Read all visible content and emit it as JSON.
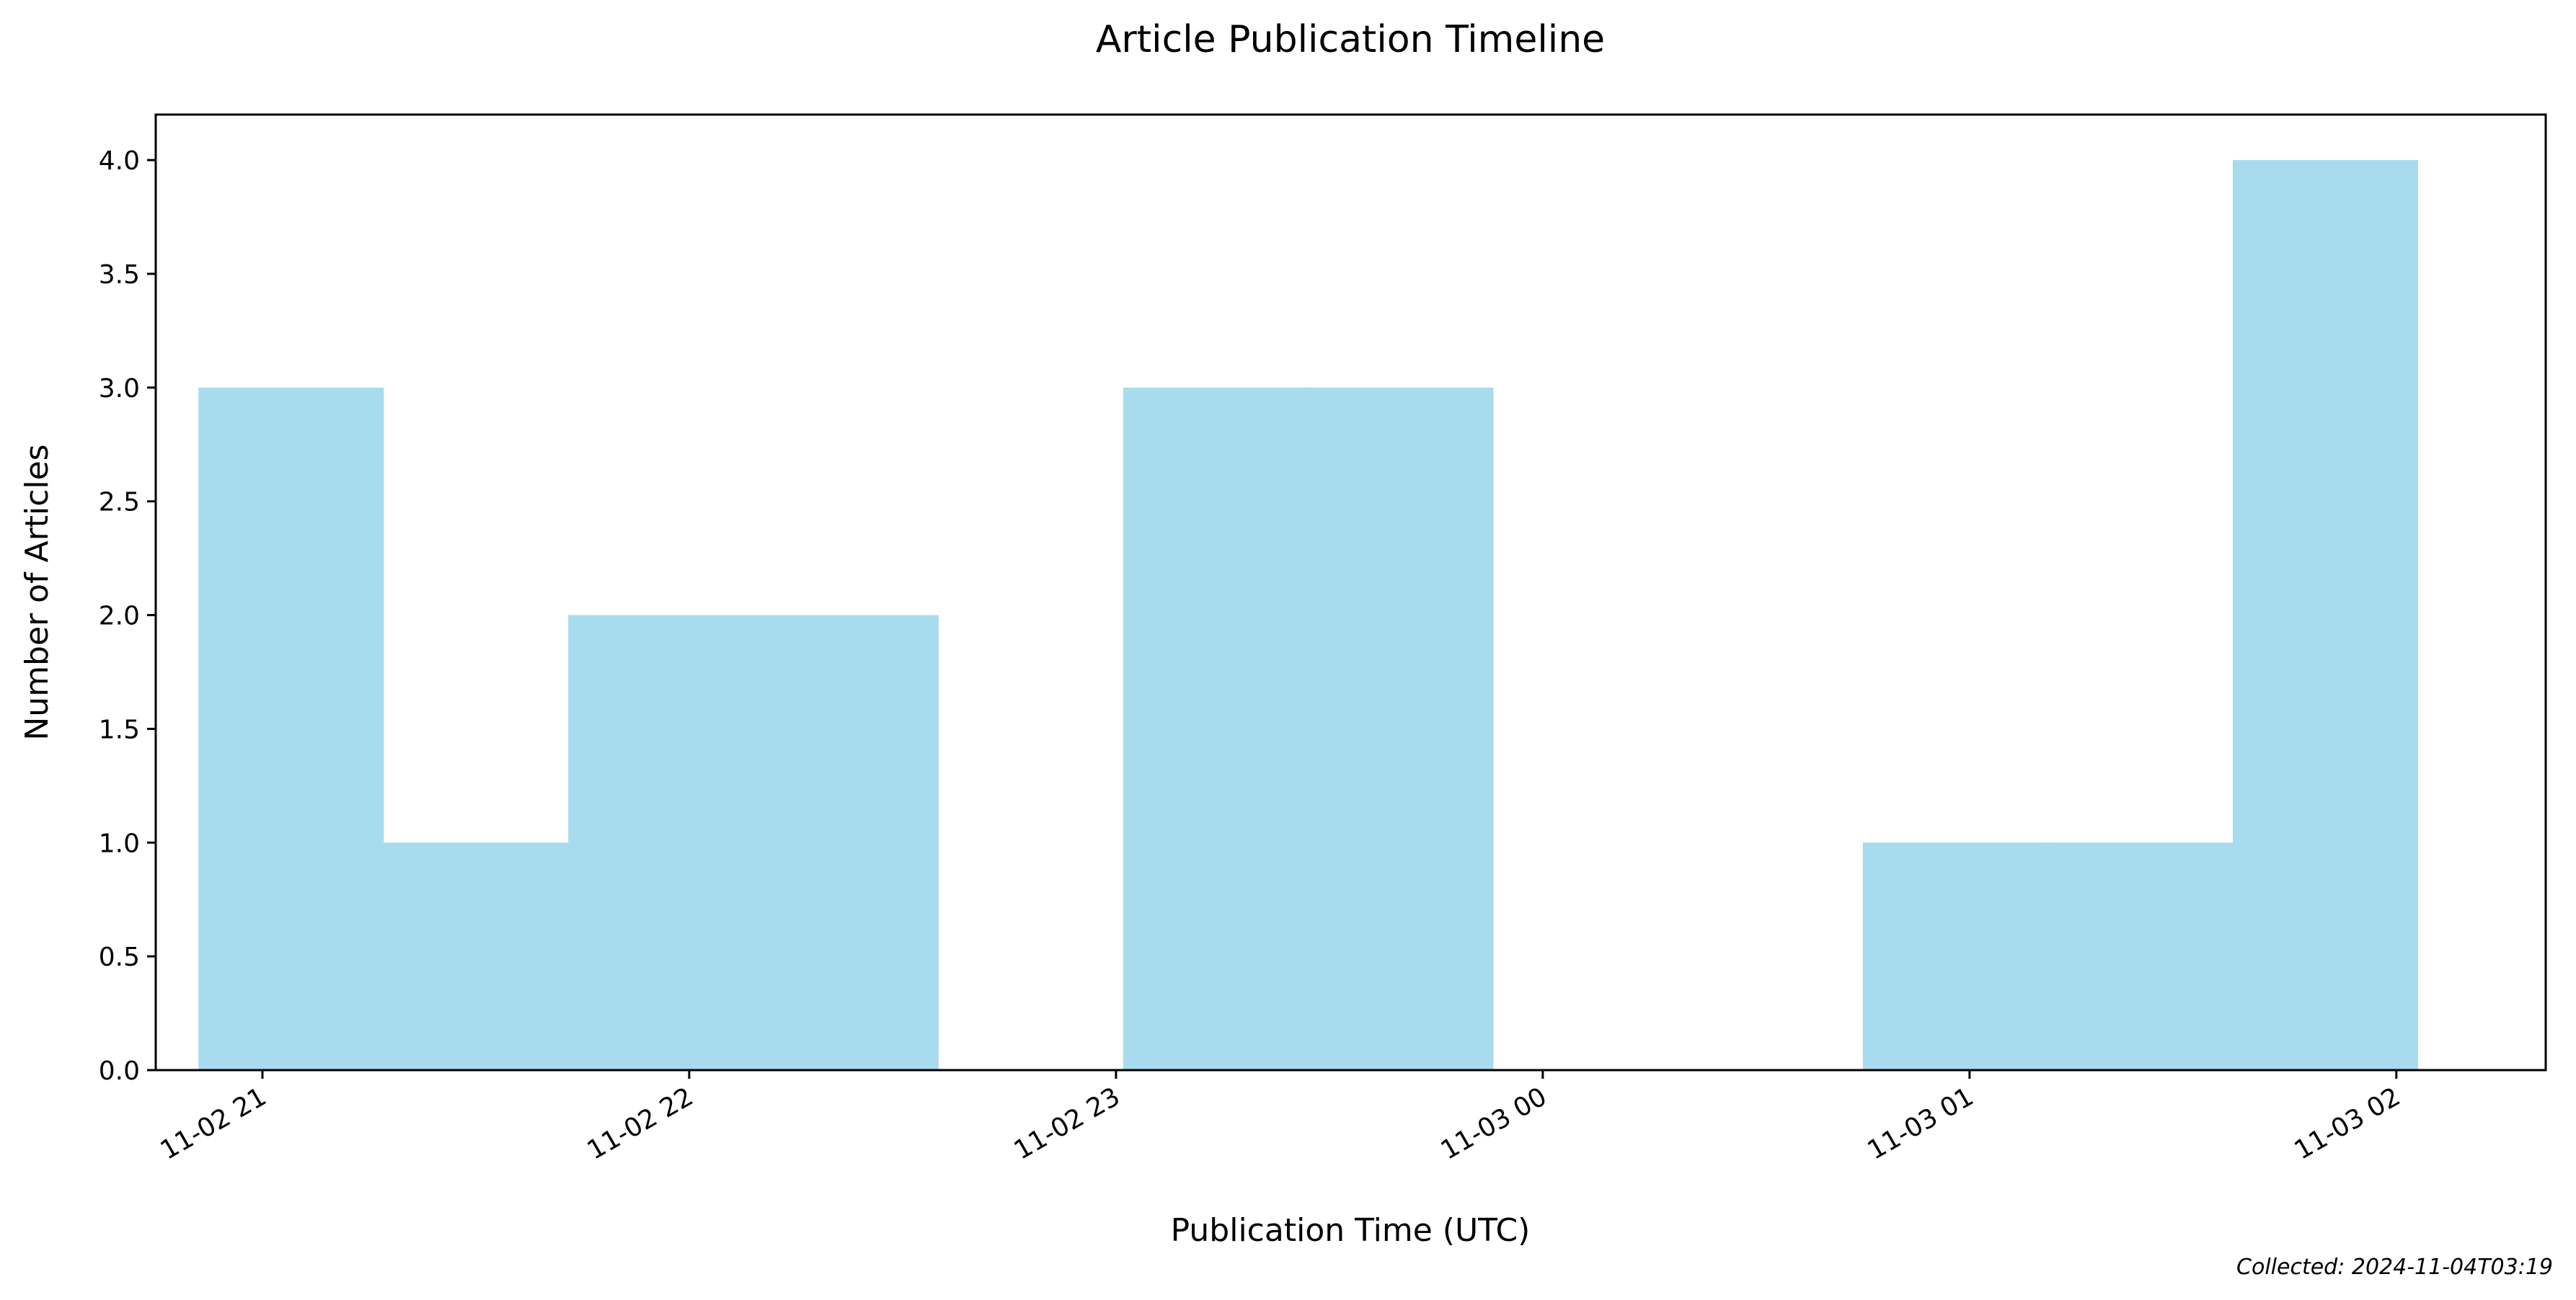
{
  "chart_data": {
    "type": "bar",
    "title": "Article Publication Timeline",
    "xlabel": "Publication Time (UTC)",
    "ylabel": "Number of Articles",
    "note": "Collected: 2024-11-04T03:19",
    "bar_color": "#a8dbee",
    "x_axis": {
      "unit": "time (UTC)",
      "range": [
        "2024-11-02 20:45",
        "2024-11-03 02:21"
      ],
      "ticks": [
        {
          "value": "2024-11-02 21:00",
          "label": "11-02 21"
        },
        {
          "value": "2024-11-02 22:00",
          "label": "11-02 22"
        },
        {
          "value": "2024-11-02 23:00",
          "label": "11-02 23"
        },
        {
          "value": "2024-11-03 00:00",
          "label": "11-03 00"
        },
        {
          "value": "2024-11-03 01:00",
          "label": "11-03 01"
        },
        {
          "value": "2024-11-03 02:00",
          "label": "11-03 02"
        }
      ]
    },
    "ylim": [
      0,
      4.2
    ],
    "y_ticks": [
      "0.0",
      "0.5",
      "1.0",
      "1.5",
      "2.0",
      "2.5",
      "3.0",
      "3.5",
      "4.0"
    ],
    "bins": [
      {
        "start": "2024-11-02 20:51",
        "end": "2024-11-02 21:17",
        "count": 3
      },
      {
        "start": "2024-11-02 21:17",
        "end": "2024-11-02 21:43",
        "count": 1
      },
      {
        "start": "2024-11-02 21:43",
        "end": "2024-11-02 22:09",
        "count": 2
      },
      {
        "start": "2024-11-02 22:09",
        "end": "2024-11-02 22:35",
        "count": 2
      },
      {
        "start": "2024-11-02 22:35",
        "end": "2024-11-02 23:01",
        "count": 0
      },
      {
        "start": "2024-11-02 23:01",
        "end": "2024-11-02 23:27",
        "count": 3
      },
      {
        "start": "2024-11-02 23:27",
        "end": "2024-11-02 23:53",
        "count": 3
      },
      {
        "start": "2024-11-02 23:53",
        "end": "2024-11-03 00:19",
        "count": 0
      },
      {
        "start": "2024-11-03 00:19",
        "end": "2024-11-03 00:45",
        "count": 0
      },
      {
        "start": "2024-11-03 00:45",
        "end": "2024-11-03 01:11",
        "count": 1
      },
      {
        "start": "2024-11-03 01:11",
        "end": "2024-11-03 01:37",
        "count": 1
      },
      {
        "start": "2024-11-03 01:37",
        "end": "2024-11-03 02:03",
        "count": 4
      }
    ]
  }
}
